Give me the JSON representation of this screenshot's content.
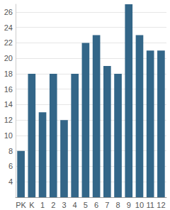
{
  "chart_data": {
    "type": "bar",
    "categories": [
      "PK",
      "K",
      "1",
      "2",
      "3",
      "4",
      "5",
      "6",
      "7",
      "8",
      "9",
      "10",
      "11",
      "12"
    ],
    "values": [
      8,
      18,
      13,
      18,
      12,
      18,
      22,
      23,
      19,
      18,
      27,
      23,
      21,
      21
    ],
    "color": "#336688",
    "ylim": [
      2,
      27
    ],
    "yticks": [
      4,
      6,
      8,
      10,
      12,
      14,
      16,
      18,
      20,
      22,
      24,
      26
    ],
    "grid": true
  }
}
